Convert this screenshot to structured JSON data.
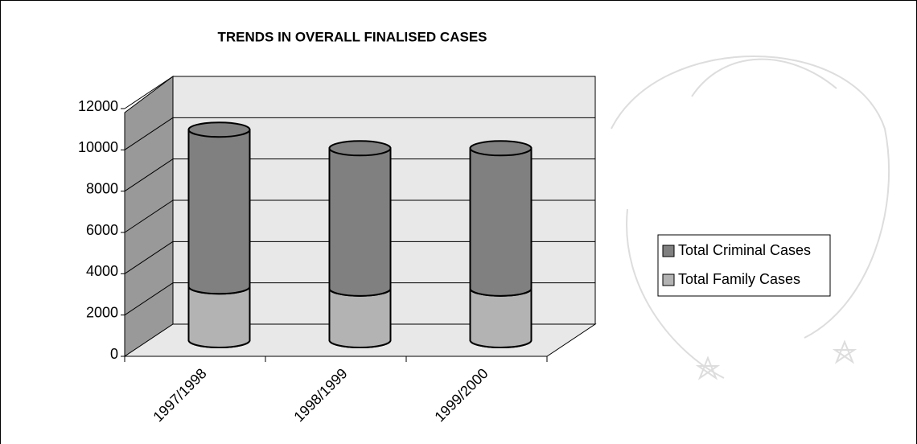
{
  "chart_data": {
    "type": "bar3d-stacked-cylinder",
    "title": "TRENDS IN OVERALL FINALISED CASES",
    "categories": [
      "1997/1998",
      "1998/1999",
      "1999/2000"
    ],
    "series": [
      {
        "name": "Total Family Cases",
        "color": "#b3b3b3",
        "values": [
          2600,
          2500,
          2500
        ]
      },
      {
        "name": "Total Criminal Cases",
        "color": "#808080",
        "values": [
          7600,
          6800,
          6800
        ]
      }
    ],
    "ylim": [
      0,
      12000
    ],
    "yticks": [
      0,
      2000,
      4000,
      6000,
      8000,
      10000,
      12000
    ],
    "grid": true,
    "legend": "right"
  }
}
